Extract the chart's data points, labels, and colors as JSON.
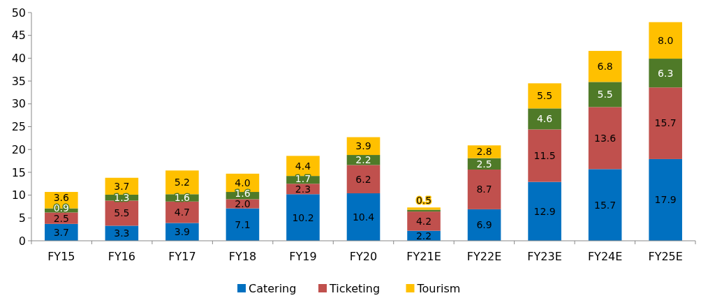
{
  "chart_data": {
    "type": "bar",
    "stacked": true,
    "categories": [
      "FY15",
      "FY16",
      "FY17",
      "FY18",
      "FY19",
      "FY20",
      "FY21E",
      "FY22E",
      "FY23E",
      "FY24E",
      "FY25E"
    ],
    "series": [
      {
        "name": "Catering",
        "color": "#0070c0",
        "values": [
          3.7,
          3.3,
          3.9,
          7.1,
          10.2,
          10.4,
          2.2,
          6.9,
          12.9,
          15.7,
          17.9
        ],
        "value_labels": [
          "3.7",
          "3.3",
          "3.9",
          "7.1",
          "10.2",
          "10.4",
          "2.2",
          "6.9",
          "12.9",
          "15.7",
          "17.9"
        ]
      },
      {
        "name": "Ticketing",
        "color": "#c0504d",
        "values": [
          2.5,
          5.5,
          4.7,
          2.0,
          2.3,
          6.2,
          4.2,
          8.7,
          11.5,
          13.6,
          15.7
        ],
        "value_labels": [
          "2.5",
          "5.5",
          "4.7",
          "2.0",
          "2.3",
          "6.2",
          "4.2",
          "8.7",
          "11.5",
          "13.6",
          "15.7"
        ]
      },
      {
        "color": "#4f7a28",
        "values": [
          0.9,
          1.3,
          1.6,
          1.6,
          1.7,
          2.2,
          0.4,
          2.5,
          4.6,
          5.5,
          6.3
        ],
        "value_labels": [
          "0.9",
          "1.3",
          "1.6",
          "1.6",
          "1.7",
          "2.2",
          null,
          "2.5",
          "4.6",
          "5.5",
          "6.3"
        ]
      },
      {
        "name": "Tourism",
        "color": "#ffc000",
        "values": [
          3.6,
          3.7,
          5.2,
          4.0,
          4.4,
          3.9,
          0.5,
          2.8,
          5.5,
          6.8,
          8.0
        ],
        "value_labels": [
          "3.6",
          "3.7",
          "5.2",
          "4.0",
          "4.4",
          "3.9",
          "0.5",
          "2.8",
          "5.5",
          "6.8",
          "8.0"
        ]
      }
    ],
    "ylim": [
      0,
      50
    ],
    "yticks": [
      0,
      5,
      10,
      15,
      20,
      25,
      30,
      35,
      40,
      45,
      50
    ],
    "legend": "bottom"
  }
}
